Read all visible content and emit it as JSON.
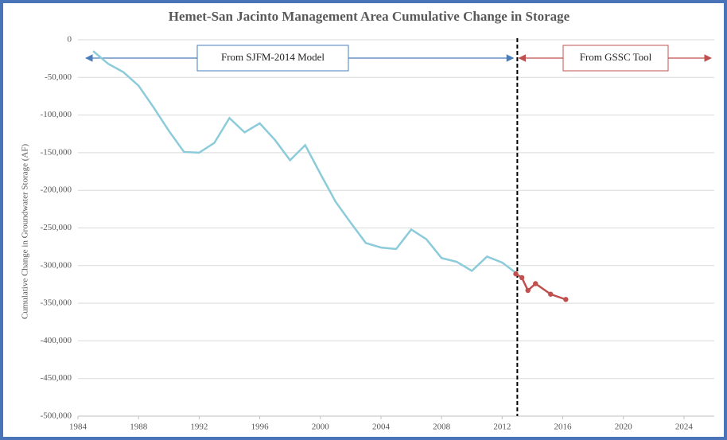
{
  "chart_data": {
    "type": "line",
    "title": "Hemet-San Jacinto Management Area Cumulative Change in Storage",
    "y_label": "Cumulative Change in Groundwater Storage (AF)",
    "annotations": [
      {
        "text": "From SJFM-2014 Model",
        "color": "#4a7ebb"
      },
      {
        "text": "From GSSC Tool",
        "color": "#c0504d"
      }
    ],
    "divider_x": 2013,
    "xlim": [
      1984,
      2026
    ],
    "xticks": [
      1984,
      1988,
      1992,
      1996,
      2000,
      2004,
      2008,
      2012,
      2016,
      2020,
      2024
    ],
    "ylim": [
      -500000,
      0
    ],
    "yticks": [
      {
        "value": -500000,
        "label": "-500,000"
      },
      {
        "value": -450000,
        "label": "-450,000"
      },
      {
        "value": -400000,
        "label": "-400,000"
      },
      {
        "value": -350000,
        "label": "-350,000"
      },
      {
        "value": -300000,
        "label": "-300,000"
      },
      {
        "value": -250000,
        "label": "-250,000"
      },
      {
        "value": -200000,
        "label": "-200,000"
      },
      {
        "value": -150000,
        "label": "-150,000"
      },
      {
        "value": -100000,
        "label": "-100,000"
      },
      {
        "value": -50000,
        "label": "-50,000"
      },
      0
    ],
    "grid": true,
    "series": [
      {
        "color": "#8ccbd9",
        "markers": false,
        "x": [
          1985,
          1986,
          1987,
          1988,
          1989,
          1990,
          1991,
          1992,
          1993,
          1994,
          1995,
          1996,
          1997,
          1998,
          1999,
          2000,
          2001,
          2002,
          2003,
          2004,
          2005,
          2006,
          2007,
          2008,
          2009,
          2010,
          2011,
          2012,
          2013
        ],
        "values": [
          -15000,
          -32000,
          -43000,
          -61000,
          -90000,
          -121000,
          -149000,
          -150000,
          -137000,
          -104000,
          -123000,
          -111000,
          -133000,
          -160000,
          -140000,
          -178000,
          -215000,
          -243000,
          -270000,
          -276000,
          -278000,
          -252000,
          -265000,
          -290000,
          -295000,
          -307000,
          -288000,
          -296000,
          -311000
        ]
      },
      {
        "color": "#c0504d",
        "markers": true,
        "x": [
          2012.9,
          2013.3,
          2013.7,
          2014.2,
          2015.2,
          2016.2
        ],
        "values": [
          -311000,
          -316000,
          -333000,
          -324000,
          -338000,
          -345000
        ]
      }
    ]
  }
}
